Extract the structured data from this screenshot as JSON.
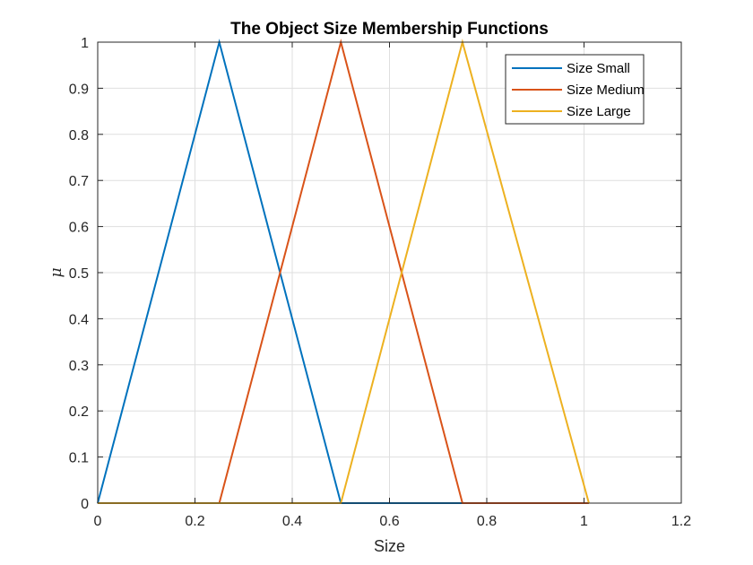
{
  "chart_data": {
    "type": "line",
    "title": "The Object Size Membership Functions",
    "xlabel": "Size",
    "ylabel": "μ",
    "xlim": [
      0,
      1.2
    ],
    "ylim": [
      0,
      1
    ],
    "xticks": [
      0,
      0.2,
      0.4,
      0.6,
      0.8,
      1,
      1.2
    ],
    "xtick_labels": [
      "0",
      "0.2",
      "0.4",
      "0.6",
      "0.8",
      "1",
      "1.2"
    ],
    "yticks": [
      0,
      0.1,
      0.2,
      0.3,
      0.4,
      0.5,
      0.6,
      0.7,
      0.8,
      0.9,
      1
    ],
    "ytick_labels": [
      "0",
      "0.1",
      "0.2",
      "0.3",
      "0.4",
      "0.5",
      "0.6",
      "0.7",
      "0.8",
      "0.9",
      "1"
    ],
    "grid": true,
    "legend_position": "top-right",
    "series": [
      {
        "name": "Size Small",
        "color": "#0072BD",
        "x": [
          0,
          0.25,
          0.5,
          0.75
        ],
        "y": [
          0,
          1,
          0,
          0
        ]
      },
      {
        "name": "Size Medium",
        "color": "#D95319",
        "x": [
          0,
          0.25,
          0.5,
          0.75,
          1.01
        ],
        "y": [
          0,
          0,
          1,
          0,
          0
        ]
      },
      {
        "name": "Size Large",
        "color": "#EDB120",
        "x": [
          0,
          0.5,
          0.75,
          1.01
        ],
        "y": [
          0,
          0,
          1,
          0
        ]
      }
    ]
  }
}
